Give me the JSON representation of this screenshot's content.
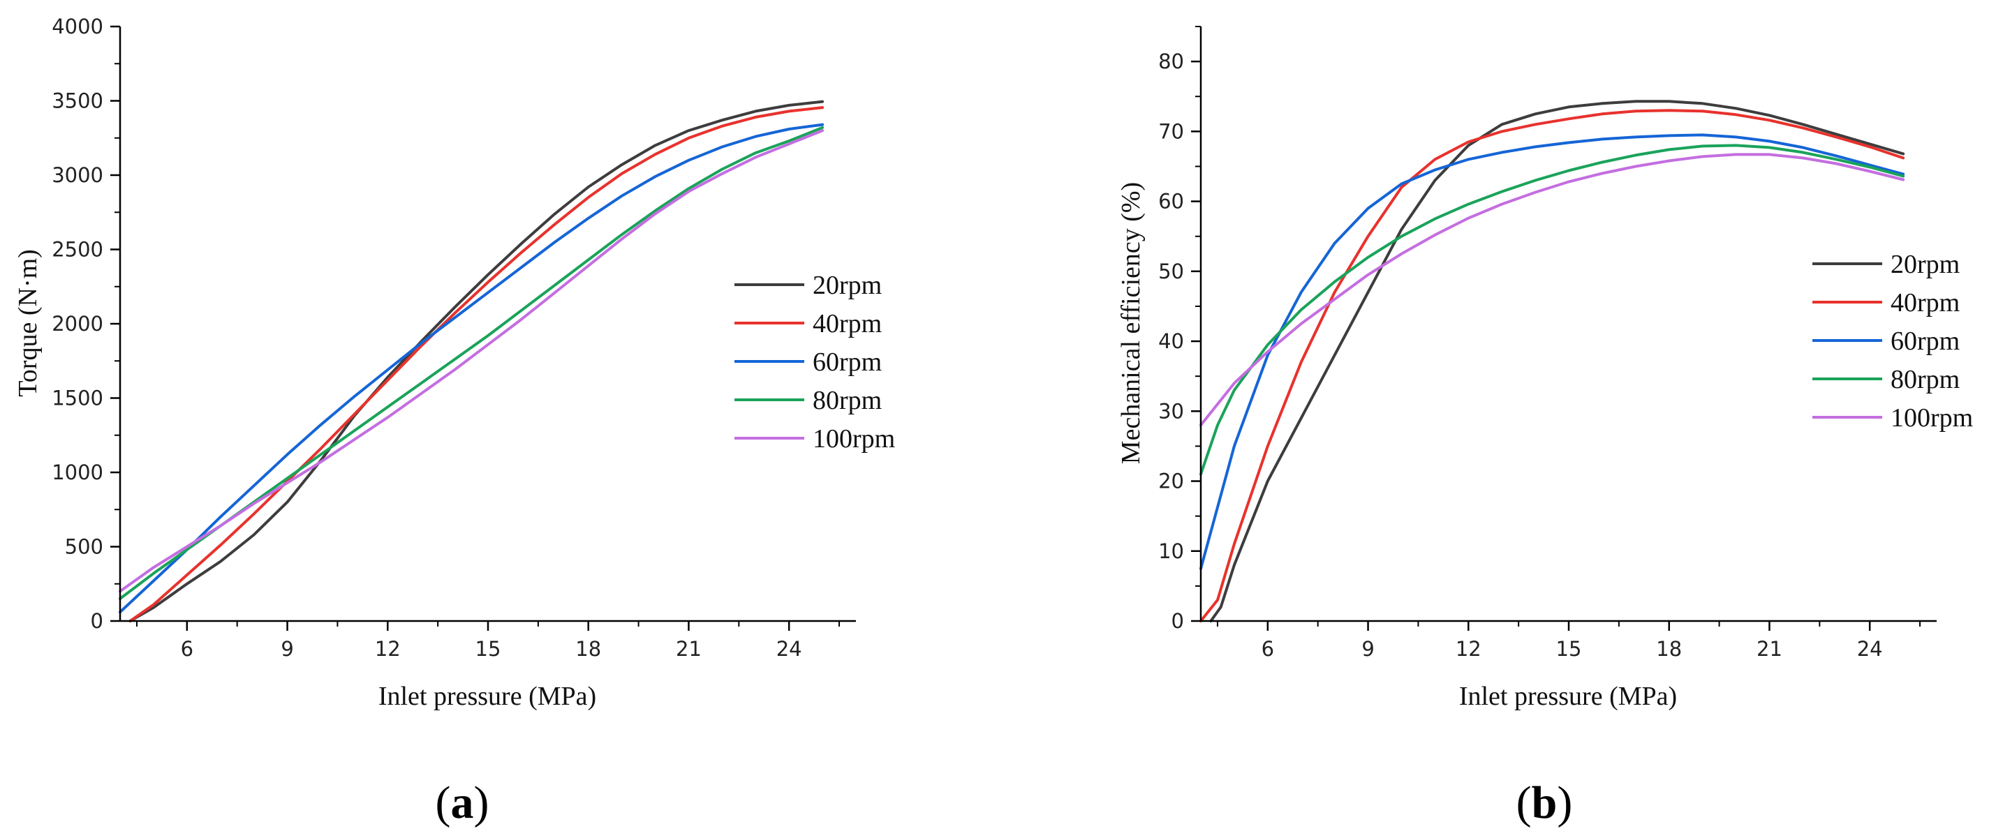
{
  "colors": {
    "20rpm": "#3d3d3d",
    "40rpm": "#e8322d",
    "60rpm": "#1565d6",
    "80rpm": "#1aa35a",
    "100rpm": "#c46ee0",
    "axis": "#000000"
  },
  "panel_labels": [
    {
      "open": "(",
      "letter": "a",
      "close": ")"
    },
    {
      "open": "(",
      "letter": "b",
      "close": ")"
    }
  ],
  "chart_data": [
    {
      "type": "line",
      "title": "",
      "xlabel": "Inlet pressure (MPa)",
      "ylabel": "Torque (N·m)",
      "xlim": [
        4,
        26
      ],
      "ylim": [
        0,
        4000
      ],
      "xticks": [
        6,
        9,
        12,
        15,
        18,
        21,
        24
      ],
      "yticks": [
        0,
        500,
        1000,
        1500,
        2000,
        2500,
        3000,
        3500,
        4000
      ],
      "grid": false,
      "legend_position": "center-right",
      "series": [
        {
          "name": "20rpm",
          "x": [
            4.3,
            5,
            6,
            7,
            8,
            9,
            10,
            11,
            12,
            13,
            14,
            15,
            16,
            17,
            18,
            19,
            20,
            21,
            22,
            23,
            24,
            25
          ],
          "values": [
            0,
            90,
            250,
            400,
            580,
            800,
            1080,
            1380,
            1640,
            1880,
            2110,
            2330,
            2540,
            2740,
            2920,
            3070,
            3200,
            3300,
            3370,
            3430,
            3470,
            3495
          ]
        },
        {
          "name": "40rpm",
          "x": [
            4.3,
            5,
            6,
            7,
            8,
            9,
            10,
            11,
            12,
            13,
            14,
            15,
            16,
            17,
            18,
            19,
            20,
            21,
            22,
            23,
            24,
            25
          ],
          "values": [
            0,
            110,
            310,
            510,
            720,
            940,
            1160,
            1390,
            1620,
            1850,
            2070,
            2280,
            2480,
            2670,
            2850,
            3010,
            3140,
            3250,
            3330,
            3390,
            3430,
            3455
          ]
        },
        {
          "name": "60rpm",
          "x": [
            4,
            5,
            6,
            7,
            8,
            9,
            10,
            11,
            12,
            13,
            14,
            15,
            16,
            17,
            18,
            19,
            20,
            21,
            22,
            23,
            24,
            25
          ],
          "values": [
            60,
            270,
            480,
            700,
            910,
            1120,
            1320,
            1510,
            1690,
            1870,
            2040,
            2210,
            2380,
            2550,
            2710,
            2860,
            2990,
            3100,
            3190,
            3260,
            3310,
            3340
          ]
        },
        {
          "name": "80rpm",
          "x": [
            4,
            5,
            6,
            7,
            8,
            9,
            10,
            11,
            12,
            13,
            14,
            15,
            16,
            17,
            18,
            19,
            20,
            21,
            22,
            23,
            24,
            25
          ],
          "values": [
            150,
            320,
            480,
            640,
            800,
            960,
            1120,
            1280,
            1440,
            1600,
            1760,
            1920,
            2090,
            2260,
            2430,
            2600,
            2760,
            2910,
            3040,
            3150,
            3230,
            3320
          ]
        },
        {
          "name": "100rpm",
          "x": [
            4,
            5,
            6,
            7,
            8,
            9,
            10,
            11,
            12,
            13,
            14,
            15,
            16,
            17,
            18,
            19,
            20,
            21,
            22,
            23,
            24,
            25
          ],
          "values": [
            200,
            360,
            500,
            640,
            790,
            930,
            1070,
            1220,
            1370,
            1530,
            1690,
            1860,
            2030,
            2210,
            2390,
            2570,
            2740,
            2890,
            3010,
            3120,
            3210,
            3300
          ]
        }
      ]
    },
    {
      "type": "line",
      "title": "",
      "xlabel": "Inlet pressure (MPa)",
      "ylabel": "Mechanical efficiency (%)",
      "xlim": [
        4,
        26
      ],
      "ylim": [
        0,
        85
      ],
      "xticks": [
        6,
        9,
        12,
        15,
        18,
        21,
        24
      ],
      "yticks": [
        0,
        10,
        20,
        30,
        40,
        50,
        60,
        70,
        80
      ],
      "grid": false,
      "legend_position": "center-right",
      "series": [
        {
          "name": "20rpm",
          "x": [
            4.3,
            4.6,
            5,
            6,
            7,
            8,
            9,
            10,
            11,
            12,
            13,
            14,
            15,
            16,
            17,
            18,
            19,
            20,
            21,
            22,
            23,
            24,
            25
          ],
          "values": [
            0,
            2,
            8,
            20,
            29,
            38,
            47,
            56,
            63,
            68,
            71,
            72.5,
            73.5,
            74,
            74.3,
            74.3,
            74,
            73.3,
            72.3,
            71,
            69.6,
            68.2,
            66.8
          ]
        },
        {
          "name": "40rpm",
          "x": [
            4,
            4.5,
            5,
            6,
            7,
            8,
            9,
            10,
            11,
            12,
            13,
            14,
            15,
            16,
            17,
            18,
            19,
            20,
            21,
            22,
            23,
            24,
            25
          ],
          "values": [
            0,
            3,
            11,
            25,
            37,
            47,
            55,
            62,
            66,
            68.5,
            70,
            71,
            71.8,
            72.5,
            72.9,
            73,
            72.9,
            72.4,
            71.6,
            70.5,
            69.2,
            67.8,
            66.2
          ]
        },
        {
          "name": "60rpm",
          "x": [
            4,
            5,
            6,
            7,
            8,
            9,
            10,
            11,
            12,
            13,
            14,
            15,
            16,
            17,
            18,
            19,
            20,
            21,
            22,
            23,
            24,
            25
          ],
          "values": [
            7.5,
            25,
            38,
            47,
            54,
            59,
            62.5,
            64.5,
            66,
            67,
            67.8,
            68.4,
            68.9,
            69.2,
            69.4,
            69.5,
            69.2,
            68.6,
            67.7,
            66.5,
            65.2,
            63.9
          ]
        },
        {
          "name": "80rpm",
          "x": [
            4,
            4.5,
            5,
            6,
            7,
            8,
            9,
            10,
            11,
            12,
            13,
            14,
            15,
            16,
            17,
            18,
            19,
            20,
            21,
            22,
            23,
            24,
            25
          ],
          "values": [
            21,
            28,
            33,
            39.5,
            44.5,
            48.5,
            52,
            55,
            57.5,
            59.6,
            61.4,
            63,
            64.4,
            65.6,
            66.6,
            67.4,
            67.9,
            68,
            67.7,
            67,
            66,
            64.9,
            63.6
          ]
        },
        {
          "name": "100rpm",
          "x": [
            4,
            5,
            6,
            7,
            8,
            9,
            10,
            11,
            12,
            13,
            14,
            15,
            16,
            17,
            18,
            19,
            20,
            21,
            22,
            23,
            24,
            25
          ],
          "values": [
            28,
            34,
            38.5,
            42.5,
            46,
            49.5,
            52.5,
            55.2,
            57.6,
            59.6,
            61.3,
            62.8,
            64,
            65,
            65.8,
            66.4,
            66.7,
            66.7,
            66.2,
            65.4,
            64.3,
            63.1
          ]
        }
      ]
    }
  ]
}
